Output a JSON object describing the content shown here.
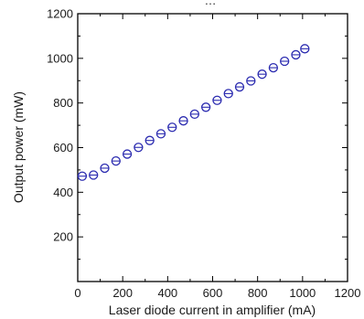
{
  "chart_data": {
    "type": "scatter",
    "title": "",
    "top_text": "…",
    "xlabel": "Laser diode current in amplifier (mA)",
    "ylabel": "Output power (mW)",
    "xlim": [
      0,
      1200
    ],
    "ylim": [
      0,
      1200
    ],
    "xticks": [
      0,
      200,
      400,
      600,
      800,
      1000,
      1200
    ],
    "yticks": [
      0,
      200,
      400,
      600,
      800,
      1000,
      1200
    ],
    "grid": false,
    "marker": "circle-with-horizontal-line",
    "color": "#2b2bb0",
    "series": [
      {
        "x": [
          20,
          70,
          120,
          170,
          220,
          270,
          320,
          370,
          420,
          470,
          520,
          570,
          620,
          670,
          720,
          770,
          820,
          870,
          920,
          970,
          1010
        ],
        "y": [
          472,
          477,
          508,
          540,
          571,
          601,
          632,
          662,
          691,
          720,
          750,
          781,
          812,
          842,
          872,
          899,
          929,
          958,
          987,
          1016,
          1043
        ]
      }
    ]
  }
}
